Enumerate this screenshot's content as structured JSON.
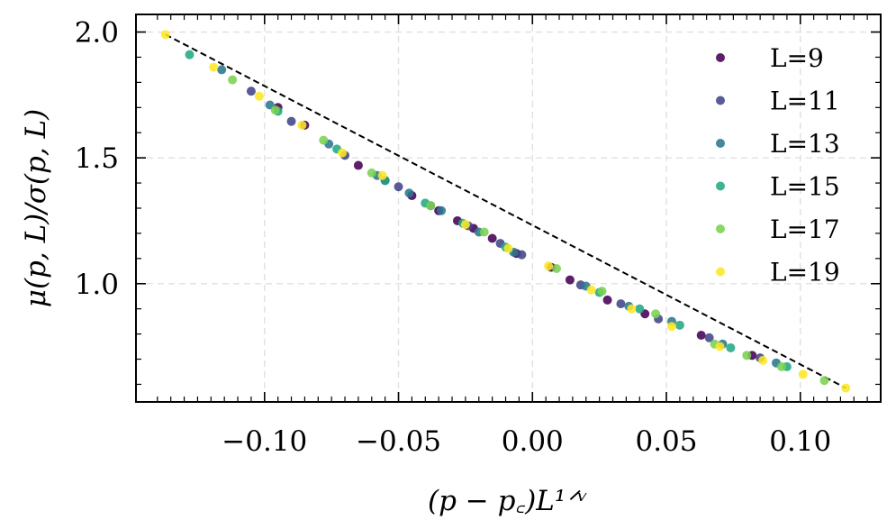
{
  "chart_data": {
    "type": "scatter",
    "xlabel": "(p − p꜀)L¹ᐟᵛ",
    "ylabel": "μ(p, L)/σ(p, L)",
    "xlim": [
      -0.148,
      0.13
    ],
    "ylim": [
      0.53,
      2.07
    ],
    "xticks": [
      -0.1,
      -0.05,
      0.0,
      0.05,
      0.1
    ],
    "xtick_labels": [
      "−0.10",
      "−0.05",
      "0.00",
      "0.05",
      "0.10"
    ],
    "yticks": [
      1.0,
      1.5,
      2.0
    ],
    "ytick_labels": [
      "1.0",
      "1.5",
      "2.0"
    ],
    "grid": true,
    "legend_position": "top-right",
    "fit_line": {
      "style": "dashed",
      "color": "#000000",
      "x": [
        -0.137,
        0.117
      ],
      "y": [
        1.99,
        0.585
      ]
    },
    "series": [
      {
        "name": "L=9",
        "color": "#440154",
        "x": [
          -0.095,
          -0.085,
          -0.065,
          -0.055,
          -0.045,
          -0.035,
          -0.028,
          -0.022,
          -0.015,
          -0.006,
          0.007,
          0.014,
          0.028,
          0.042,
          0.063,
          0.082
        ],
        "y": [
          1.7,
          1.63,
          1.47,
          1.41,
          1.35,
          1.29,
          1.25,
          1.22,
          1.18,
          1.12,
          1.065,
          1.015,
          0.935,
          0.88,
          0.795,
          0.715
        ]
      },
      {
        "name": "L=11",
        "color": "#414487",
        "x": [
          -0.105,
          -0.09,
          -0.07,
          -0.05,
          -0.038,
          -0.024,
          -0.012,
          -0.004,
          0.018,
          0.033,
          0.047,
          0.066,
          0.085
        ],
        "y": [
          1.765,
          1.645,
          1.51,
          1.385,
          1.31,
          1.23,
          1.16,
          1.115,
          0.995,
          0.92,
          0.86,
          0.785,
          0.705
        ]
      },
      {
        "name": "L=13",
        "color": "#2a788e",
        "x": [
          -0.116,
          -0.098,
          -0.076,
          -0.058,
          -0.046,
          -0.034,
          -0.02,
          -0.007,
          0.02,
          0.036,
          0.052,
          0.071,
          0.091
        ],
        "y": [
          1.85,
          1.71,
          1.555,
          1.43,
          1.36,
          1.29,
          1.205,
          1.125,
          0.99,
          0.91,
          0.85,
          0.76,
          0.685
        ]
      },
      {
        "name": "L=15",
        "color": "#22a884",
        "x": [
          -0.128,
          -0.095,
          -0.073,
          -0.055,
          -0.04,
          -0.026,
          -0.01,
          0.025,
          0.04,
          0.055,
          0.074,
          0.095
        ],
        "y": [
          1.91,
          1.685,
          1.535,
          1.41,
          1.32,
          1.24,
          1.145,
          0.965,
          0.9,
          0.835,
          0.745,
          0.67
        ]
      },
      {
        "name": "L=17",
        "color": "#7ad151",
        "x": [
          -0.112,
          -0.096,
          -0.078,
          -0.06,
          -0.038,
          -0.018,
          0.009,
          0.026,
          0.046,
          0.068,
          0.08,
          0.093,
          0.109
        ],
        "y": [
          1.81,
          1.69,
          1.57,
          1.44,
          1.31,
          1.205,
          1.06,
          0.97,
          0.88,
          0.76,
          0.715,
          0.67,
          0.615
        ]
      },
      {
        "name": "L=19",
        "color": "#fde725",
        "x": [
          -0.137,
          -0.119,
          -0.102,
          -0.086,
          -0.071,
          -0.056,
          -0.025,
          -0.009,
          0.006,
          0.022,
          0.037,
          0.052,
          0.07,
          0.086,
          0.101,
          0.117
        ],
        "y": [
          1.99,
          1.86,
          1.745,
          1.63,
          1.52,
          1.43,
          1.235,
          1.14,
          1.07,
          0.975,
          0.9,
          0.83,
          0.75,
          0.695,
          0.64,
          0.585
        ]
      }
    ]
  }
}
